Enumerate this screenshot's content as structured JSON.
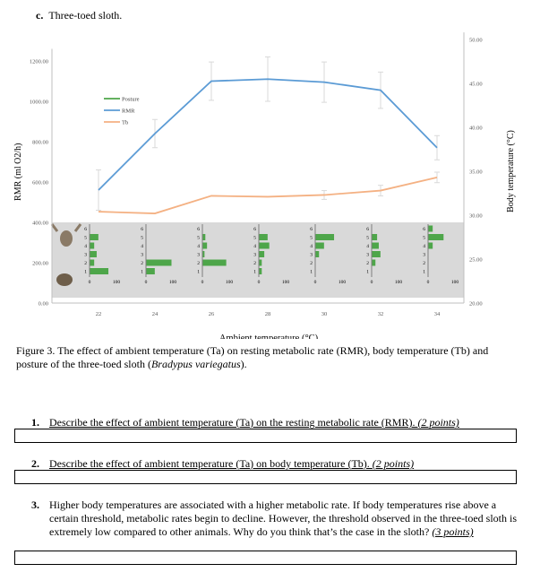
{
  "heading": {
    "letter": "c.",
    "text": "Three-toed sloth."
  },
  "chart_data": {
    "type": "line",
    "x": [
      22,
      24,
      26,
      28,
      30,
      32,
      34
    ],
    "xlabel": "Ambient temperature (°C)",
    "ylabel_left": "RMR (ml O2/h)",
    "ylabel_right": "Body temperature (°C)",
    "x_ticks": [
      "22",
      "24",
      "26",
      "28",
      "30",
      "32",
      "34"
    ],
    "left_ticks": [
      "0.00",
      "200.00",
      "400.00",
      "600.00",
      "800.00",
      "1000.00",
      "1200.00"
    ],
    "right_ticks": [
      "20.00",
      "25.00",
      "30.00",
      "35.00",
      "40.00",
      "45.00",
      "50.00"
    ],
    "ylim_left": [
      0,
      1300
    ],
    "ylim_right": [
      20,
      50
    ],
    "legend": [
      "Posture",
      "RMR",
      "Tb"
    ],
    "legend_position": "top-left",
    "series": [
      {
        "name": "RMR",
        "axis": "left",
        "color": "#5b9bd5",
        "values": [
          560,
          840,
          1100,
          1110,
          1095,
          1055,
          770
        ],
        "errors": [
          100,
          70,
          95,
          110,
          100,
          90,
          60
        ]
      },
      {
        "name": "Tb",
        "axis": "right",
        "color": "#f4b183",
        "values": [
          30.4,
          30.2,
          32.2,
          32.1,
          32.3,
          32.8,
          34.3
        ],
        "errors": [
          0,
          0,
          0,
          0,
          0.5,
          0.6,
          0.6
        ]
      }
    ],
    "posture_panel": {
      "levels": [
        "6",
        "5",
        "4",
        "3",
        "2",
        "1"
      ],
      "axis_labels": [
        "0",
        "100"
      ],
      "bars": [
        [
          0,
          10,
          5,
          8,
          5,
          22
        ],
        [
          0,
          0,
          0,
          0,
          30,
          10
        ],
        [
          0,
          3,
          5,
          2,
          28,
          0
        ],
        [
          0,
          10,
          12,
          6,
          3,
          3
        ],
        [
          0,
          22,
          10,
          4,
          0,
          0
        ],
        [
          0,
          6,
          8,
          10,
          4,
          0
        ],
        [
          5,
          18,
          5,
          0,
          0,
          0
        ]
      ]
    }
  },
  "figure": {
    "caption_before": "Figure 3. The effect of ambient temperature (Ta) on resting metabolic rate (RMR), body temperature (Tb) and posture of the three-toed sloth (",
    "caption_italic": "Bradypus variegatus",
    "caption_after": ")."
  },
  "questions": [
    {
      "number": "1.",
      "text": "Describe the effect of ambient temperature (Ta) on the resting metabolic rate (RMR). ",
      "points": "(2 points)"
    },
    {
      "number": "2.",
      "text": "Describe the effect of ambient temperature (Ta) on body temperature (Tb). ",
      "points": "(2 points)"
    },
    {
      "number": "3.",
      "text": "Higher body temperatures are associated with a higher metabolic rate. If body temperatures rise above a certain threshold, metabolic rates begin to decline. However, the threshold observed in the three-toed sloth is extremely low compared to other animals. Why do you think that’s the case in the sloth? ",
      "points": "(3 points)"
    }
  ]
}
